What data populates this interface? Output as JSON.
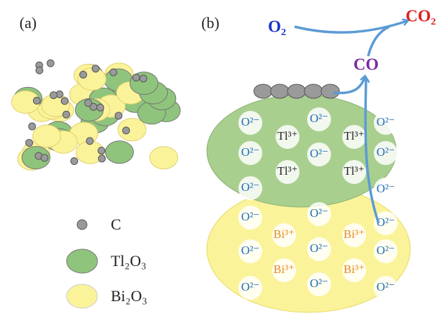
{
  "panel_a": {
    "label": "(a)",
    "legend": [
      "C",
      "Tl₂O₃",
      "Bi₂O₃"
    ]
  },
  "panel_b": {
    "label": "(b)",
    "o2": "O₂",
    "co2": "CO₂",
    "co": "CO",
    "tl_oxide_ions": [
      "O²⁻",
      "O²⁻",
      "O²⁻",
      "O²⁻",
      "O²⁻",
      "O²⁻",
      "O²⁻",
      "O²⁻",
      "Tl³⁺",
      "Tl³⁺",
      "Tl³⁺",
      "Tl³⁺"
    ],
    "bi_oxide_ions": [
      "O²⁻",
      "O²⁻",
      "O²⁻",
      "O²⁻",
      "O²⁻",
      "O²⁻",
      "O²⁻",
      "O²⁻",
      "O²⁻",
      "Bi³⁺",
      "Bi³⁺",
      "Bi³⁺",
      "Bi³⁺"
    ]
  }
}
